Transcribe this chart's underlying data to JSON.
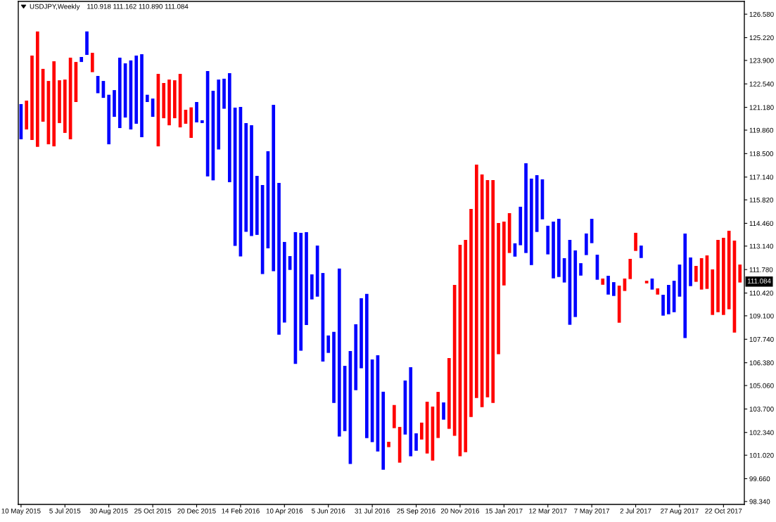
{
  "chart_data": {
    "type": "bar",
    "title": "USDJPY,Weekly",
    "subtitle": "110.918 111.162 110.890 111.084",
    "categories": [
      "10 May 2015",
      null,
      null,
      null,
      null,
      null,
      null,
      null,
      "5 Jul 2015",
      null,
      null,
      null,
      null,
      null,
      null,
      null,
      "30 Aug 2015",
      null,
      null,
      null,
      null,
      null,
      null,
      null,
      "25 Oct 2015",
      null,
      null,
      null,
      null,
      null,
      null,
      null,
      "20 Dec 2015",
      null,
      null,
      null,
      null,
      null,
      null,
      null,
      "14 Feb 2016",
      null,
      null,
      null,
      null,
      null,
      null,
      null,
      "10 Apr 2016",
      null,
      null,
      null,
      null,
      null,
      null,
      null,
      "5 Jun 2016",
      null,
      null,
      null,
      null,
      null,
      null,
      null,
      "31 Jul 2016",
      null,
      null,
      null,
      null,
      null,
      null,
      null,
      "25 Sep 2016",
      null,
      null,
      null,
      null,
      null,
      null,
      null,
      "20 Nov 2016",
      null,
      null,
      null,
      null,
      null,
      null,
      null,
      "15 Jan 2017",
      null,
      null,
      null,
      null,
      null,
      null,
      null,
      "12 Mar 2017",
      null,
      null,
      null,
      null,
      null,
      null,
      null,
      "7 May 2017",
      null,
      null,
      null,
      null,
      null,
      null,
      null,
      "2 Jul 2017",
      null,
      null,
      null,
      null,
      null,
      null,
      null,
      "27 Aug 2017",
      null,
      null,
      null,
      null,
      null,
      null,
      null,
      "22 Oct 2017",
      null,
      null,
      null
    ],
    "values": [
      2.04,
      1.67,
      4.89,
      6.69,
      3.06,
      3.67,
      4.93,
      2.48,
      3.09,
      4.73,
      2.32,
      0.29,
      1.36,
      1.12,
      1.0,
      0.98,
      2.87,
      1.55,
      4.08,
      3.14,
      4.0,
      3.95,
      4.81,
      0.42,
      1.06,
      4.2,
      2.04,
      2.65,
      2.2,
      3.1,
      0.81,
      1.77,
      1.18,
      0.16,
      6.1,
      5.19,
      4.05,
      1.74,
      6.32,
      8.01,
      8.66,
      6.3,
      6.42,
      3.42,
      5.16,
      5.63,
      9.65,
      8.79,
      4.67,
      0.8,
      7.64,
      6.83,
      5.38,
      1.45,
      2.96,
      5.13,
      1.01,
      4.12,
      9.74,
      3.78,
      6.55,
      3.82,
      4.06,
      8.36,
      4.79,
      5.57,
      4.52,
      0.31,
      1.34,
      2.07,
      3.13,
      5.16,
      1.01,
      0.98,
      3.0,
      3.13,
      2.67,
      1.0,
      4.1,
      8.75,
      12.25,
      12.3,
      12.05,
      13.52,
      13.48,
      12.58,
      12.91,
      7.61,
      3.7,
      2.31,
      0.77,
      2.23,
      5.2,
      5.01,
      3.29,
      2.32,
      1.66,
      3.29,
      3.37,
      1.41,
      4.92,
      3.86,
      0.72,
      1.25,
      1.41,
      1.45,
      0.36,
      1.09,
      0.8,
      2.15,
      0.72,
      1.17,
      1.05,
      0.72,
      0.15,
      0.64,
      0.36,
      1.21,
      1.7,
      1.82,
      1.86,
      6.06,
      1.66,
      0.92,
      1.82,
      1.94,
      2.64,
      4.19,
      4.47,
      4.55,
      5.33,
      1.04
    ],
    "base": [
      119.33,
      119.9,
      119.29,
      118.89,
      120.35,
      119.04,
      118.92,
      120.27,
      119.7,
      119.33,
      121.49,
      123.81,
      124.22,
      123.22,
      122.0,
      121.73,
      119.04,
      120.63,
      119.98,
      120.59,
      119.9,
      120.23,
      119.45,
      121.49,
      120.63,
      118.92,
      120.55,
      120.14,
      120.55,
      120.02,
      120.23,
      119.41,
      120.31,
      120.27,
      117.18,
      116.95,
      118.74,
      121.1,
      116.84,
      113.15,
      112.54,
      113.97,
      113.72,
      113.79,
      111.52,
      113.01,
      111.68,
      108.01,
      108.71,
      111.76,
      106.31,
      107.08,
      108.57,
      110.05,
      110.21,
      106.45,
      106.95,
      104.05,
      102.1,
      102.42,
      100.51,
      104.79,
      106.06,
      102.01,
      101.78,
      101.24,
      100.18,
      101.49,
      102.59,
      100.59,
      102.22,
      100.96,
      101.28,
      101.93,
      101.12,
      100.71,
      102.02,
      103.08,
      102.55,
      102.14,
      100.96,
      101.2,
      103.24,
      104.34,
      103.81,
      104.38,
      104.05,
      106.87,
      110.86,
      112.74,
      112.53,
      113.19,
      112.74,
      112.04,
      113.96,
      114.69,
      112.66,
      111.27,
      111.35,
      111.03,
      108.58,
      109.03,
      111.43,
      112.62,
      113.31,
      111.19,
      110.9,
      110.33,
      110.25,
      108.7,
      110.54,
      111.23,
      112.86,
      112.45,
      110.98,
      110.62,
      110.33,
      109.11,
      109.19,
      109.31,
      110.21,
      107.81,
      110.82,
      111.07,
      110.62,
      110.66,
      109.15,
      109.31,
      109.15,
      109.48,
      108.13,
      111.03
    ],
    "colors": [
      "#0000ff",
      "#ff0000",
      "#ff0000",
      "#ff0000",
      "#ff0000",
      "#ff0000",
      "#ff0000",
      "#ff0000",
      "#ff0000",
      "#ff0000",
      "#ff0000",
      "#0000ff",
      "#0000ff",
      "#ff0000",
      "#0000ff",
      "#0000ff",
      "#0000ff",
      "#0000ff",
      "#0000ff",
      "#0000ff",
      "#0000ff",
      "#0000ff",
      "#0000ff",
      "#0000ff",
      "#0000ff",
      "#ff0000",
      "#ff0000",
      "#ff0000",
      "#ff0000",
      "#ff0000",
      "#ff0000",
      "#ff0000",
      "#0000ff",
      "#0000ff",
      "#0000ff",
      "#0000ff",
      "#0000ff",
      "#0000ff",
      "#0000ff",
      "#0000ff",
      "#0000ff",
      "#0000ff",
      "#0000ff",
      "#0000ff",
      "#0000ff",
      "#0000ff",
      "#0000ff",
      "#0000ff",
      "#0000ff",
      "#0000ff",
      "#0000ff",
      "#0000ff",
      "#0000ff",
      "#0000ff",
      "#0000ff",
      "#0000ff",
      "#0000ff",
      "#0000ff",
      "#0000ff",
      "#0000ff",
      "#0000ff",
      "#0000ff",
      "#0000ff",
      "#0000ff",
      "#0000ff",
      "#0000ff",
      "#0000ff",
      "#ff0000",
      "#ff0000",
      "#ff0000",
      "#0000ff",
      "#0000ff",
      "#0000ff",
      "#ff0000",
      "#ff0000",
      "#ff0000",
      "#ff0000",
      "#0000ff",
      "#ff0000",
      "#ff0000",
      "#ff0000",
      "#ff0000",
      "#ff0000",
      "#ff0000",
      "#ff0000",
      "#ff0000",
      "#ff0000",
      "#ff0000",
      "#ff0000",
      "#ff0000",
      "#0000ff",
      "#0000ff",
      "#0000ff",
      "#0000ff",
      "#0000ff",
      "#0000ff",
      "#0000ff",
      "#0000ff",
      "#0000ff",
      "#0000ff",
      "#0000ff",
      "#0000ff",
      "#0000ff",
      "#0000ff",
      "#0000ff",
      "#0000ff",
      "#ff0000",
      "#0000ff",
      "#0000ff",
      "#ff0000",
      "#ff0000",
      "#ff0000",
      "#ff0000",
      "#0000ff",
      "#ff0000",
      "#0000ff",
      "#ff0000",
      "#0000ff",
      "#0000ff",
      "#0000ff",
      "#0000ff",
      "#0000ff",
      "#0000ff",
      "#ff0000",
      "#ff0000",
      "#ff0000",
      "#ff0000",
      "#ff0000",
      "#ff0000",
      "#ff0000",
      "#ff0000",
      "#ff0000"
    ],
    "ylim": [
      98.17,
      127.32
    ],
    "yticks": [
      {
        "value": 126.58,
        "label": "126.580"
      },
      {
        "value": 125.22,
        "label": "125.220"
      },
      {
        "value": 123.9,
        "label": "123.900"
      },
      {
        "value": 122.54,
        "label": "122.540"
      },
      {
        "value": 121.18,
        "label": "121.180"
      },
      {
        "value": 119.86,
        "label": "119.860"
      },
      {
        "value": 118.5,
        "label": "118.500"
      },
      {
        "value": 117.14,
        "label": "117.140"
      },
      {
        "value": 115.82,
        "label": "115.820"
      },
      {
        "value": 114.46,
        "label": "114.460"
      },
      {
        "value": 113.14,
        "label": "113.140"
      },
      {
        "value": 111.78,
        "label": "111.780"
      },
      {
        "value": 110.42,
        "label": "110.420"
      },
      {
        "value": 109.1,
        "label": "109.100"
      },
      {
        "value": 107.74,
        "label": "107.740"
      },
      {
        "value": 106.38,
        "label": "106.380"
      },
      {
        "value": 105.06,
        "label": "105.060"
      },
      {
        "value": 103.7,
        "label": "103.700"
      },
      {
        "value": 102.34,
        "label": "102.340"
      },
      {
        "value": 101.02,
        "label": "101.020"
      },
      {
        "value": 99.66,
        "label": "99.660"
      },
      {
        "value": 98.34,
        "label": "98.340"
      }
    ],
    "annotations": [
      {
        "text": "111.084",
        "y": 111.084
      }
    ]
  }
}
